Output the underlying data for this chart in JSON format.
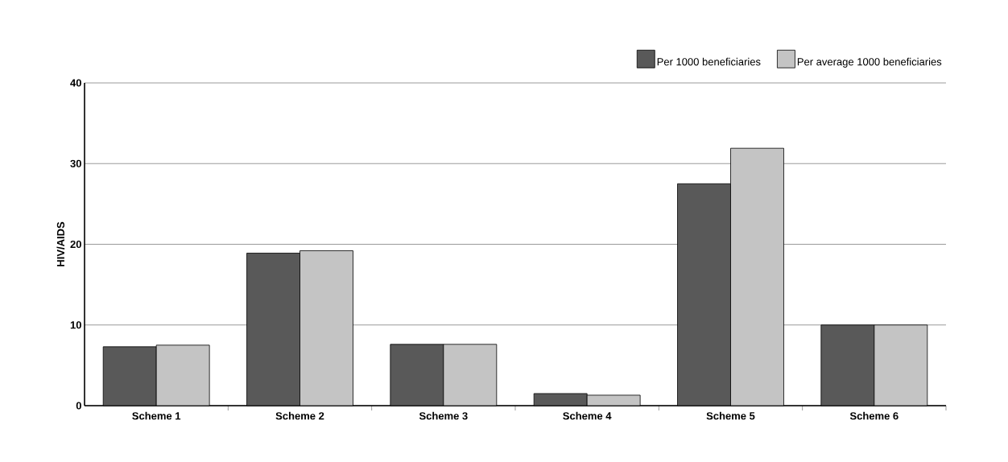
{
  "chart_data": {
    "type": "bar",
    "ylabel": "HIV/AIDS",
    "categories": [
      "Scheme 1",
      "Scheme 2",
      "Scheme 3",
      "Scheme 4",
      "Scheme 5",
      "Scheme 6"
    ],
    "series": [
      {
        "name": "Per 1000 beneficiaries",
        "color": "#595959",
        "values": [
          7.3,
          18.9,
          7.6,
          1.5,
          27.5,
          10.0
        ]
      },
      {
        "name": "Per average 1000 beneficiaries",
        "color": "#c4c4c4",
        "values": [
          7.5,
          19.2,
          7.6,
          1.3,
          31.9,
          10.0
        ]
      }
    ],
    "ylim": [
      0,
      40
    ],
    "yticks": [
      0,
      10,
      20,
      30,
      40
    ],
    "grid": "y",
    "legend": "top right"
  }
}
